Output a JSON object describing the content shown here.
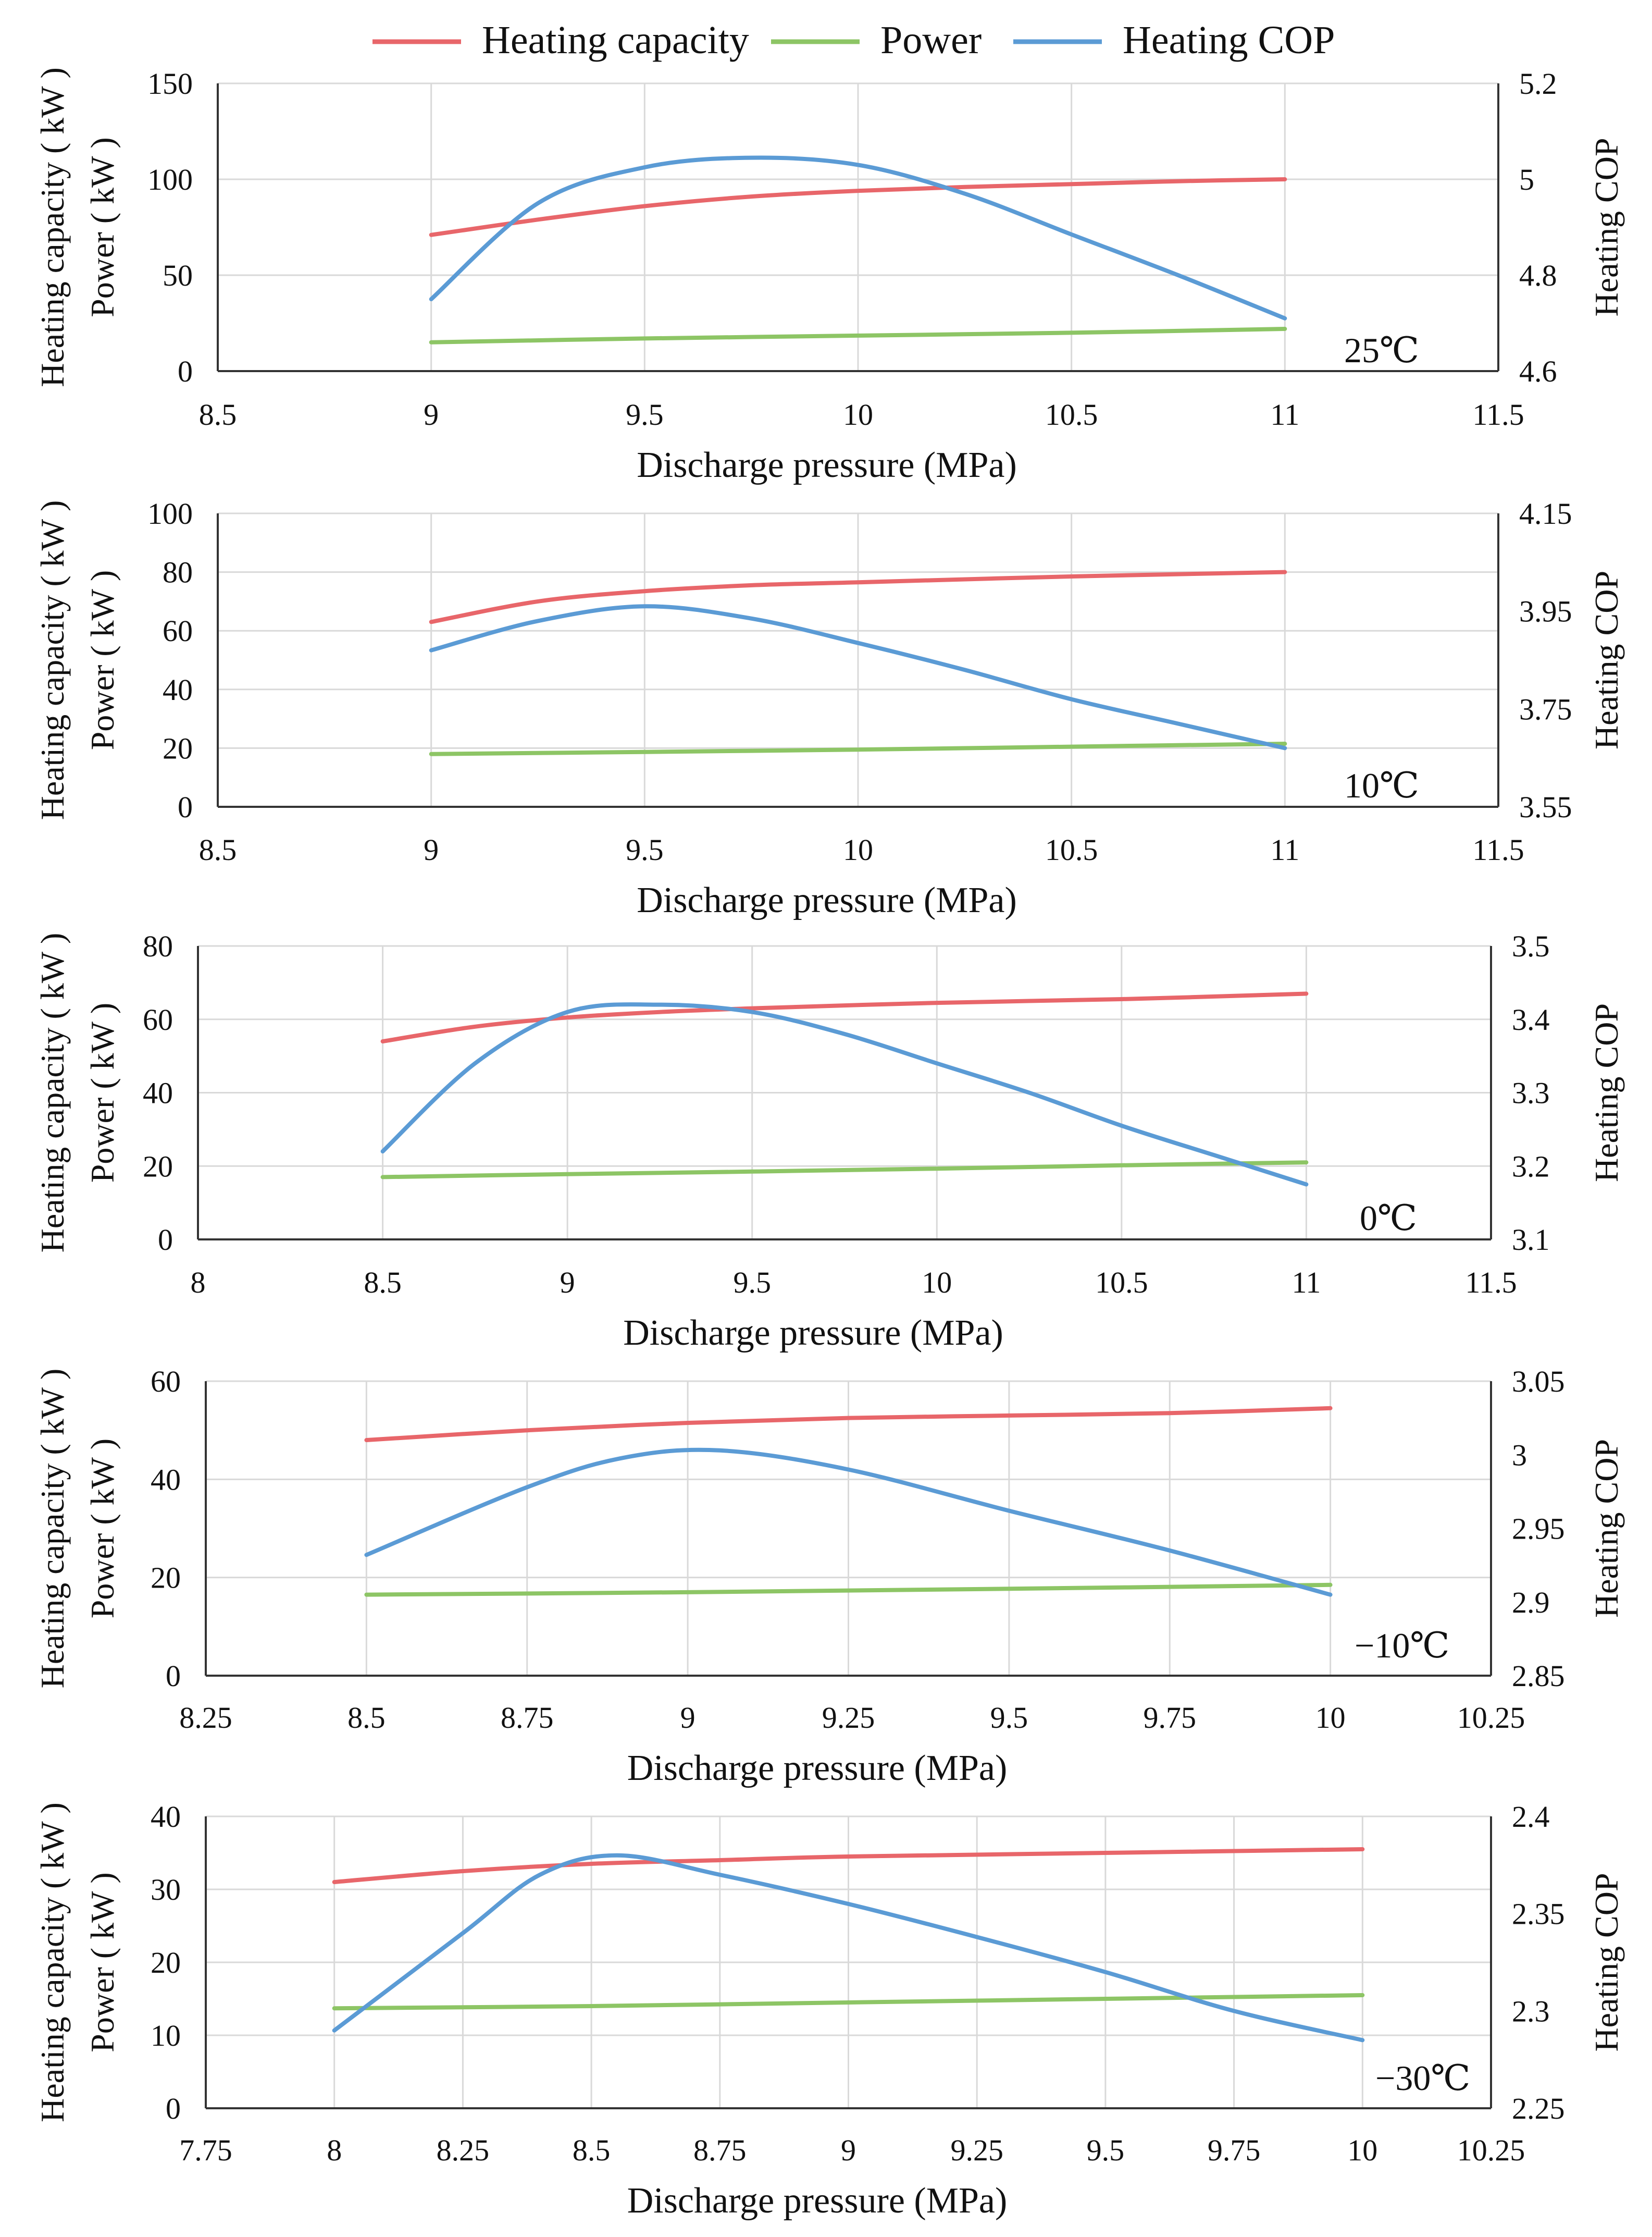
{
  "legend": {
    "entries": [
      {
        "name": "Heating capacity",
        "color": "#e8666a"
      },
      {
        "name": "Power",
        "color": "#8dc565"
      },
      {
        "name": "Heating COP",
        "color": "#5b9bd5"
      }
    ]
  },
  "chart_data": [
    {
      "type": "line",
      "panel_label": "25℃",
      "xlabel": "Discharge pressure (MPa)",
      "ylabel_left_1": "Heating capacity ( kW )",
      "ylabel_left_2": "Power ( kW )",
      "ylabel_right": "Heating COP",
      "xlim": [
        8.5,
        11.5
      ],
      "x_ticks": [
        8.5,
        9,
        9.5,
        10,
        10.5,
        11,
        11.5
      ],
      "x_tick_labels": [
        "8.5",
        "9",
        "9.5",
        "10",
        "10.5",
        "11",
        "11.5"
      ],
      "ylim_left": [
        0,
        150
      ],
      "y_left_ticks": [
        0,
        50,
        100,
        150
      ],
      "y_left_tick_labels": [
        "0",
        "50",
        "100",
        "150"
      ],
      "ylim_right": [
        4.6,
        5.2
      ],
      "y_right_ticks": [
        4.6,
        4.8,
        5.0,
        5.2
      ],
      "y_right_tick_labels": [
        "4.6",
        "4.8",
        "5",
        "5.2"
      ],
      "grid": true,
      "series": [
        {
          "name": "Heating capacity",
          "axis": "left",
          "x": [
            9,
            9.25,
            9.5,
            9.75,
            10,
            10.25,
            10.5,
            10.75,
            11
          ],
          "values": [
            71,
            79,
            86,
            91,
            94,
            96,
            97.5,
            99,
            100
          ]
        },
        {
          "name": "Power",
          "axis": "left",
          "x": [
            9,
            9.5,
            10,
            10.5,
            11
          ],
          "values": [
            15,
            17,
            18.5,
            20,
            22
          ]
        },
        {
          "name": "Heating COP",
          "axis": "right",
          "x": [
            9,
            9.25,
            9.5,
            9.75,
            10,
            10.25,
            10.5,
            10.75,
            11
          ],
          "values": [
            4.75,
            4.95,
            5.025,
            5.045,
            5.03,
            4.97,
            4.885,
            4.8,
            4.71
          ]
        }
      ]
    },
    {
      "type": "line",
      "panel_label": "10℃",
      "xlabel": "Discharge pressure (MPa)",
      "ylabel_left_1": "Heating capacity ( kW )",
      "ylabel_left_2": "Power ( kW )",
      "ylabel_right": "Heating COP",
      "xlim": [
        8.5,
        11.5
      ],
      "x_ticks": [
        8.5,
        9,
        9.5,
        10,
        10.5,
        11,
        11.5
      ],
      "x_tick_labels": [
        "8.5",
        "9",
        "9.5",
        "10",
        "10.5",
        "11",
        "11.5"
      ],
      "ylim_left": [
        0,
        100
      ],
      "y_left_ticks": [
        0,
        20,
        40,
        60,
        80,
        100
      ],
      "y_left_tick_labels": [
        "0",
        "20",
        "40",
        "60",
        "80",
        "100"
      ],
      "ylim_right": [
        3.55,
        4.15
      ],
      "y_right_ticks": [
        3.55,
        3.75,
        3.95,
        4.15
      ],
      "y_right_tick_labels": [
        "3.55",
        "3.75",
        "3.95",
        "4.15"
      ],
      "grid": true,
      "series": [
        {
          "name": "Heating capacity",
          "axis": "left",
          "x": [
            9,
            9.25,
            9.5,
            9.75,
            10,
            10.5,
            11
          ],
          "values": [
            63,
            70,
            73.5,
            75.5,
            76.5,
            78.5,
            80
          ]
        },
        {
          "name": "Power",
          "axis": "left",
          "x": [
            9,
            9.5,
            10,
            10.5,
            11
          ],
          "values": [
            18,
            18.7,
            19.5,
            20.5,
            21.5
          ]
        },
        {
          "name": "Heating COP",
          "axis": "right",
          "x": [
            9,
            9.25,
            9.5,
            9.75,
            10,
            10.25,
            10.5,
            10.75,
            11
          ],
          "values": [
            3.87,
            3.93,
            3.96,
            3.935,
            3.885,
            3.83,
            3.77,
            3.72,
            3.67
          ]
        }
      ]
    },
    {
      "type": "line",
      "panel_label": "0℃",
      "xlabel": "Discharge pressure (MPa)",
      "ylabel_left_1": "Heating capacity ( kW )",
      "ylabel_left_2": "Power ( kW )",
      "ylabel_right": "Heating COP",
      "xlim": [
        8,
        11.5
      ],
      "x_ticks": [
        8,
        8.5,
        9,
        9.5,
        10,
        10.5,
        11,
        11.5
      ],
      "x_tick_labels": [
        "8",
        "8.5",
        "9",
        "9.5",
        "10",
        "10.5",
        "11",
        "11.5"
      ],
      "ylim_left": [
        0,
        80
      ],
      "y_left_ticks": [
        0,
        20,
        40,
        60,
        80
      ],
      "y_left_tick_labels": [
        "0",
        "20",
        "40",
        "60",
        "80"
      ],
      "ylim_right": [
        3.1,
        3.5
      ],
      "y_right_ticks": [
        3.1,
        3.2,
        3.3,
        3.4,
        3.5
      ],
      "y_right_tick_labels": [
        "3.1",
        "3.2",
        "3.3",
        "3.4",
        "3.5"
      ],
      "grid": true,
      "series": [
        {
          "name": "Heating capacity",
          "axis": "left",
          "x": [
            8.5,
            8.75,
            9,
            9.25,
            9.5,
            10,
            10.5,
            11
          ],
          "values": [
            54,
            58,
            60.5,
            62,
            63,
            64.5,
            65.5,
            67
          ]
        },
        {
          "name": "Power",
          "axis": "left",
          "x": [
            8.5,
            9,
            9.5,
            10,
            10.5,
            11
          ],
          "values": [
            17,
            17.8,
            18.5,
            19.3,
            20.2,
            21
          ]
        },
        {
          "name": "Heating COP",
          "axis": "right",
          "x": [
            8.5,
            8.75,
            9,
            9.25,
            9.5,
            9.75,
            10,
            10.25,
            10.5,
            10.75,
            11
          ],
          "values": [
            3.22,
            3.34,
            3.41,
            3.42,
            3.41,
            3.38,
            3.34,
            3.3,
            3.255,
            3.215,
            3.175
          ]
        }
      ]
    },
    {
      "type": "line",
      "panel_label": "−10℃",
      "xlabel": "Discharge pressure (MPa)",
      "ylabel_left_1": "Heating capacity ( kW )",
      "ylabel_left_2": "Power ( kW )",
      "ylabel_right": "Heating COP",
      "xlim": [
        8.25,
        10.25
      ],
      "x_ticks": [
        8.25,
        8.5,
        8.75,
        9,
        9.25,
        9.5,
        9.75,
        10,
        10.25
      ],
      "x_tick_labels": [
        "8.25",
        "8.5",
        "8.75",
        "9",
        "9.25",
        "9.5",
        "9.75",
        "10",
        "10.25"
      ],
      "ylim_left": [
        0,
        60
      ],
      "y_left_ticks": [
        0,
        20,
        40,
        60
      ],
      "y_left_tick_labels": [
        "0",
        "20",
        "40",
        "60"
      ],
      "ylim_right": [
        2.85,
        3.05
      ],
      "y_right_ticks": [
        2.85,
        2.9,
        2.95,
        3.0,
        3.05
      ],
      "y_right_tick_labels": [
        "2.85",
        "2.9",
        "2.95",
        "3",
        "3.05"
      ],
      "grid": true,
      "series": [
        {
          "name": "Heating capacity",
          "axis": "left",
          "x": [
            8.5,
            8.75,
            9,
            9.25,
            9.5,
            9.75,
            10
          ],
          "values": [
            48,
            50,
            51.5,
            52.5,
            53,
            53.5,
            54.5
          ]
        },
        {
          "name": "Power",
          "axis": "left",
          "x": [
            8.5,
            9,
            9.5,
            10
          ],
          "values": [
            16.5,
            17,
            17.7,
            18.5
          ]
        },
        {
          "name": "Heating COP",
          "axis": "right",
          "x": [
            8.5,
            8.75,
            8.9,
            9.05,
            9.25,
            9.5,
            9.75,
            10
          ],
          "values": [
            2.932,
            2.978,
            2.998,
            3.003,
            2.99,
            2.962,
            2.935,
            2.905
          ]
        }
      ]
    },
    {
      "type": "line",
      "panel_label": "−30℃",
      "xlabel": "Discharge pressure (MPa)",
      "ylabel_left_1": "Heating capacity ( kW )",
      "ylabel_left_2": "Power ( kW )",
      "ylabel_right": "Heating COP",
      "xlim": [
        7.75,
        10.25
      ],
      "x_ticks": [
        7.75,
        8,
        8.25,
        8.5,
        8.75,
        9,
        9.25,
        9.5,
        9.75,
        10,
        10.25
      ],
      "x_tick_labels": [
        "7.75",
        "8",
        "8.25",
        "8.5",
        "8.75",
        "9",
        "9.25",
        "9.5",
        "9.75",
        "10",
        "10.25"
      ],
      "ylim_left": [
        0,
        40
      ],
      "y_left_ticks": [
        0,
        10,
        20,
        30,
        40
      ],
      "y_left_tick_labels": [
        "0",
        "10",
        "20",
        "30",
        "40"
      ],
      "ylim_right": [
        2.25,
        2.4
      ],
      "y_right_ticks": [
        2.25,
        2.3,
        2.35,
        2.4
      ],
      "y_right_tick_labels": [
        "2.25",
        "2.3",
        "2.35",
        "2.4"
      ],
      "grid": true,
      "series": [
        {
          "name": "Heating capacity",
          "axis": "left",
          "x": [
            8,
            8.25,
            8.5,
            8.75,
            9,
            9.5,
            10
          ],
          "values": [
            31,
            32.5,
            33.5,
            34,
            34.5,
            35,
            35.5
          ]
        },
        {
          "name": "Power",
          "axis": "left",
          "x": [
            8,
            8.5,
            9,
            9.5,
            10
          ],
          "values": [
            13.7,
            14,
            14.5,
            15,
            15.5
          ]
        },
        {
          "name": "Heating COP",
          "axis": "right",
          "x": [
            8,
            8.25,
            8.4,
            8.55,
            8.75,
            9,
            9.25,
            9.5,
            9.75,
            10
          ],
          "values": [
            2.29,
            2.34,
            2.37,
            2.38,
            2.37,
            2.355,
            2.338,
            2.32,
            2.3,
            2.285
          ]
        }
      ]
    }
  ]
}
